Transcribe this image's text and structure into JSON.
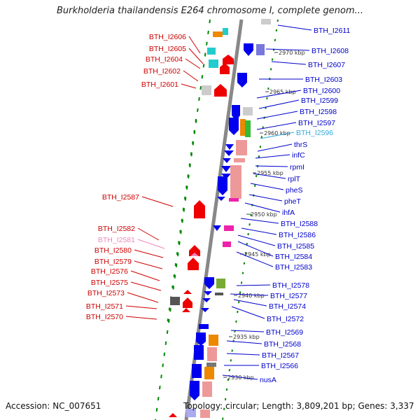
{
  "title": "Burkholderia thailandensis E264 chromosome I, complete genom...",
  "footer": {
    "accession": "Accession: NC_007651",
    "topology": "Topology: circular; Length: 3,809,201 bp; Genes: 3,337"
  },
  "colors": {
    "left_label": "#cc0000",
    "right_label": "#0000cc",
    "highlight_right": "#33aadd",
    "highlight_left": "#ee88bb",
    "backbone": "#888888",
    "dots": "#008800"
  },
  "kbp_ticks": [
    "2970 kbp",
    "2965 kbp",
    "2960 kbp",
    "2955 kbp",
    "2950 kbp",
    "2945 kbp",
    "2940 kbp",
    "2935 kbp",
    "2930 kbp"
  ],
  "left_labels": [
    {
      "text": "BTH_I2606",
      "highlight": false
    },
    {
      "text": "BTH_I2605",
      "highlight": false
    },
    {
      "text": "BTH_I2604",
      "highlight": false
    },
    {
      "text": "BTH_I2602",
      "highlight": false
    },
    {
      "text": "BTH_I2601",
      "highlight": false
    },
    {
      "text": "BTH_I2587",
      "highlight": false
    },
    {
      "text": "BTH_I2582",
      "highlight": false
    },
    {
      "text": "BTH_I2581",
      "highlight": true
    },
    {
      "text": "BTH_I2580",
      "highlight": false
    },
    {
      "text": "BTH_I2579",
      "highlight": false
    },
    {
      "text": "BTH_I2576",
      "highlight": false
    },
    {
      "text": "BTH_I2575",
      "highlight": false
    },
    {
      "text": "BTH_I2573",
      "highlight": false
    },
    {
      "text": "BTH_I2571",
      "highlight": false
    },
    {
      "text": "BTH_I2570",
      "highlight": false
    }
  ],
  "right_labels": [
    {
      "text": "BTH_I2611",
      "highlight": false
    },
    {
      "text": "BTH_I2608",
      "highlight": false
    },
    {
      "text": "BTH_I2607",
      "highlight": false
    },
    {
      "text": "BTH_I2603",
      "highlight": false
    },
    {
      "text": "BTH_I2600",
      "highlight": false
    },
    {
      "text": "BTH_I2599",
      "highlight": false
    },
    {
      "text": "BTH_I2598",
      "highlight": false
    },
    {
      "text": "BTH_I2597",
      "highlight": false
    },
    {
      "text": "BTH_I2596",
      "highlight": true
    },
    {
      "text": "thrS",
      "highlight": false
    },
    {
      "text": "infC",
      "highlight": false
    },
    {
      "text": "rpmI",
      "highlight": false
    },
    {
      "text": "rplT",
      "highlight": false
    },
    {
      "text": "pheS",
      "highlight": false
    },
    {
      "text": "pheT",
      "highlight": false
    },
    {
      "text": "ihfA",
      "highlight": false
    },
    {
      "text": "BTH_I2588",
      "highlight": false
    },
    {
      "text": "BTH_I2586",
      "highlight": false
    },
    {
      "text": "BTH_I2585",
      "highlight": false
    },
    {
      "text": "BTH_I2584",
      "highlight": false
    },
    {
      "text": "BTH_I2583",
      "highlight": false
    },
    {
      "text": "BTH_I2578",
      "highlight": false
    },
    {
      "text": "BTH_I2577",
      "highlight": false
    },
    {
      "text": "BTH_I2574",
      "highlight": false
    },
    {
      "text": "BTH_I2572",
      "highlight": false
    },
    {
      "text": "BTH_I2569",
      "highlight": false
    },
    {
      "text": "BTH_I2568",
      "highlight": false
    },
    {
      "text": "BTH_I2567",
      "highlight": false
    },
    {
      "text": "BTH_I2566",
      "highlight": false
    },
    {
      "text": "nusA",
      "highlight": false
    }
  ]
}
